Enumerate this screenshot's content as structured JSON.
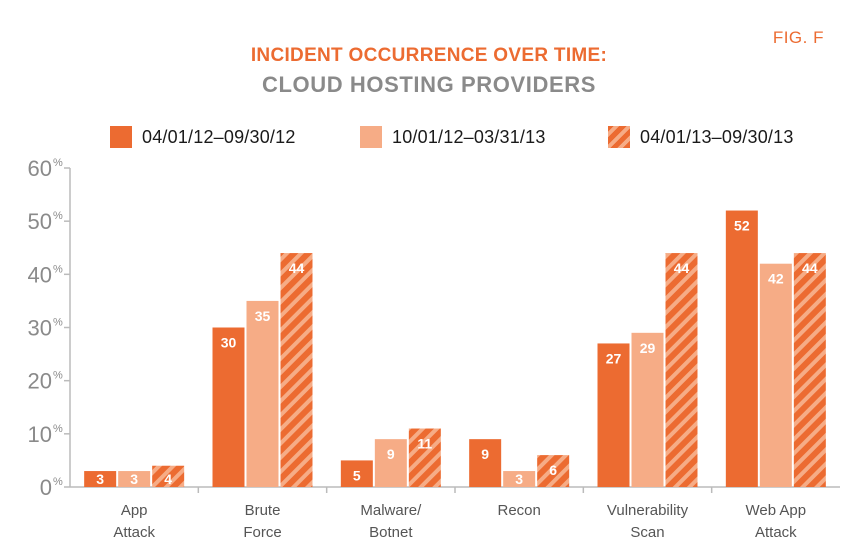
{
  "fig_label": "FIG. F",
  "chart_data": {
    "type": "bar",
    "title": "INCIDENT OCCURRENCE OVER TIME:",
    "subtitle": "CLOUD HOSTING PROVIDERS",
    "categories": [
      [
        "App",
        "Attack"
      ],
      [
        "Brute",
        "Force"
      ],
      [
        "Malware/",
        "Botnet"
      ],
      [
        "Recon"
      ],
      [
        "Vulnerability",
        "Scan"
      ],
      [
        "Web App",
        "Attack"
      ]
    ],
    "series": [
      {
        "name": "04/01/12–09/30/12",
        "values": [
          3,
          30,
          5,
          9,
          27,
          52
        ]
      },
      {
        "name": "10/01/12–03/31/13",
        "values": [
          3,
          35,
          9,
          3,
          29,
          42
        ]
      },
      {
        "name": "04/01/13–09/30/13",
        "values": [
          4,
          44,
          11,
          6,
          44,
          44
        ]
      }
    ],
    "ylim": [
      0,
      60
    ],
    "yticks": [
      0,
      10,
      20,
      30,
      40,
      50,
      60
    ],
    "ytick_suffix": "%",
    "legend_position": "top",
    "grid": false
  },
  "colors": {
    "series1": "#ec6b31",
    "series2": "#f6ac86",
    "series3_stripe_a": "#ec6b31",
    "series3_stripe_b": "#f6ac86",
    "axis": "#bbbbbb",
    "title": "#ec6b31",
    "subtitle": "#8a8a8a"
  }
}
